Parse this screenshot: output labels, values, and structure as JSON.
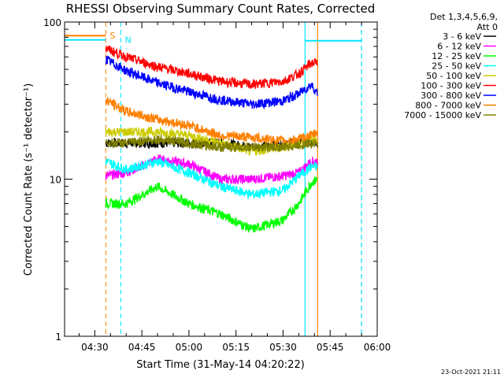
{
  "chart_data": {
    "type": "line",
    "title": "RHESSI Observing Summary Count Rates, Corrected",
    "xlabel": "Start Time (31-May-14 04:20:22)",
    "ylabel": "Corrected Count Rate (s⁻¹ detector⁻¹)",
    "yscale": "log",
    "ylim": [
      1,
      100
    ],
    "xlim_minutes": [
      260.37,
      360
    ],
    "x_ticks": [
      "04:30",
      "04:45",
      "05:00",
      "05:15",
      "05:30",
      "05:45",
      "06:00"
    ],
    "y_ticks": [
      "1",
      "10",
      "100"
    ],
    "legend_header": [
      "Det 1,3,4,5,6,9,",
      "Att 0"
    ],
    "legend_position": "top-right",
    "footer": "23-Oct-2021 21:11",
    "flags": [
      {
        "label": "S",
        "color": "#ff8000",
        "line_style": "dashed",
        "x_minute": 273.5,
        "level": 82,
        "t_start": 260.4,
        "t_end": 273.5
      },
      {
        "label": "N",
        "color": "#00e5ff",
        "line_style": "dashed",
        "x_minute": 278.3,
        "level": 77,
        "t_start": 260.4,
        "t_end": 273.5
      }
    ],
    "night_markers": [
      {
        "color": "#00e5ff",
        "x_minute": 337.0,
        "style": "solid"
      },
      {
        "color": "#00e5ff",
        "x_minute": 355.0,
        "style": "dashed"
      },
      {
        "color": "#ff8000",
        "x_minute": 341.0,
        "style": "solid"
      }
    ],
    "night_bar": {
      "color": "#00e5ff",
      "t_start": 337.0,
      "t_end": 355.0,
      "level": 76
    },
    "x_minutes": [
      273.5,
      280,
      290,
      300,
      310,
      320,
      330,
      335,
      339,
      341
    ],
    "series": [
      {
        "name": "3 - 6 keV",
        "color": "#000000",
        "values": [
          17,
          17,
          17,
          17,
          17,
          16,
          16.5,
          17,
          17.5,
          17
        ]
      },
      {
        "name": "6 - 12 keV",
        "color": "#ff00ff",
        "values": [
          10.5,
          11,
          13.5,
          12.5,
          10,
          10,
          10.5,
          11,
          13,
          13
        ]
      },
      {
        "name": "12 - 25 keV",
        "color": "#00ff00",
        "values": [
          7,
          7,
          9,
          7,
          6,
          4.8,
          5.5,
          7,
          9.5,
          10
        ]
      },
      {
        "name": "25 - 50 keV",
        "color": "#00ffff",
        "values": [
          13,
          11.5,
          13,
          11,
          9,
          8,
          8.5,
          10.5,
          12,
          12
        ]
      },
      {
        "name": "50 - 100 keV",
        "color": "#cccc00",
        "values": [
          20,
          20,
          20,
          19,
          17,
          15,
          16,
          17,
          18,
          18
        ]
      },
      {
        "name": "100 - 300 keV",
        "color": "#ff0000",
        "values": [
          68,
          60,
          52,
          47,
          42,
          40,
          42,
          47,
          55,
          55
        ]
      },
      {
        "name": "300 - 800 keV",
        "color": "#0000ff",
        "values": [
          58,
          49,
          41,
          36,
          32,
          30,
          31.5,
          35,
          40,
          35
        ]
      },
      {
        "name": "800 - 7000 keV",
        "color": "#ff8000",
        "values": [
          32,
          27,
          24,
          22,
          19,
          18.5,
          17.5,
          18,
          19,
          20
        ]
      },
      {
        "name": "7000 - 15000 keV",
        "color": "#808000",
        "values": [
          17,
          17,
          18,
          17,
          16,
          16,
          16,
          16.5,
          17,
          17
        ]
      }
    ]
  }
}
